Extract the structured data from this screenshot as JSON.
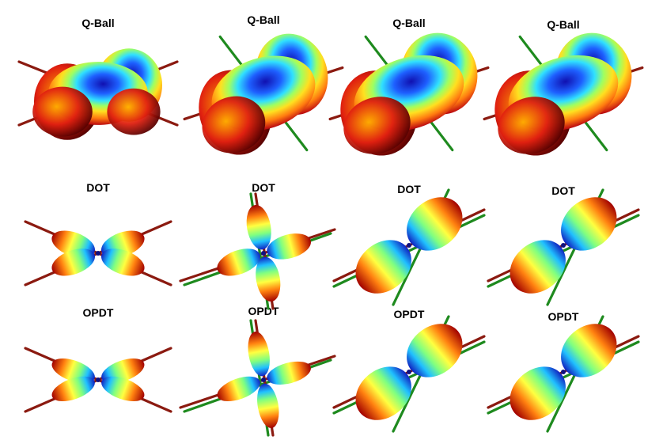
{
  "rows": [
    {
      "method": "Q-Ball",
      "shape": "qball"
    },
    {
      "method": "DOT",
      "shape": "lobes"
    },
    {
      "method": "OPDT",
      "shape": "lobes"
    }
  ],
  "columns": 4,
  "axis_colors": {
    "primary": "#8b1a10",
    "secondary": "#1e8a1e"
  },
  "colormap": [
    "#00008b",
    "#0000ff",
    "#00bfff",
    "#00ff80",
    "#ffff00",
    "#ff8c00",
    "#cc0000",
    "#7a0000"
  ]
}
